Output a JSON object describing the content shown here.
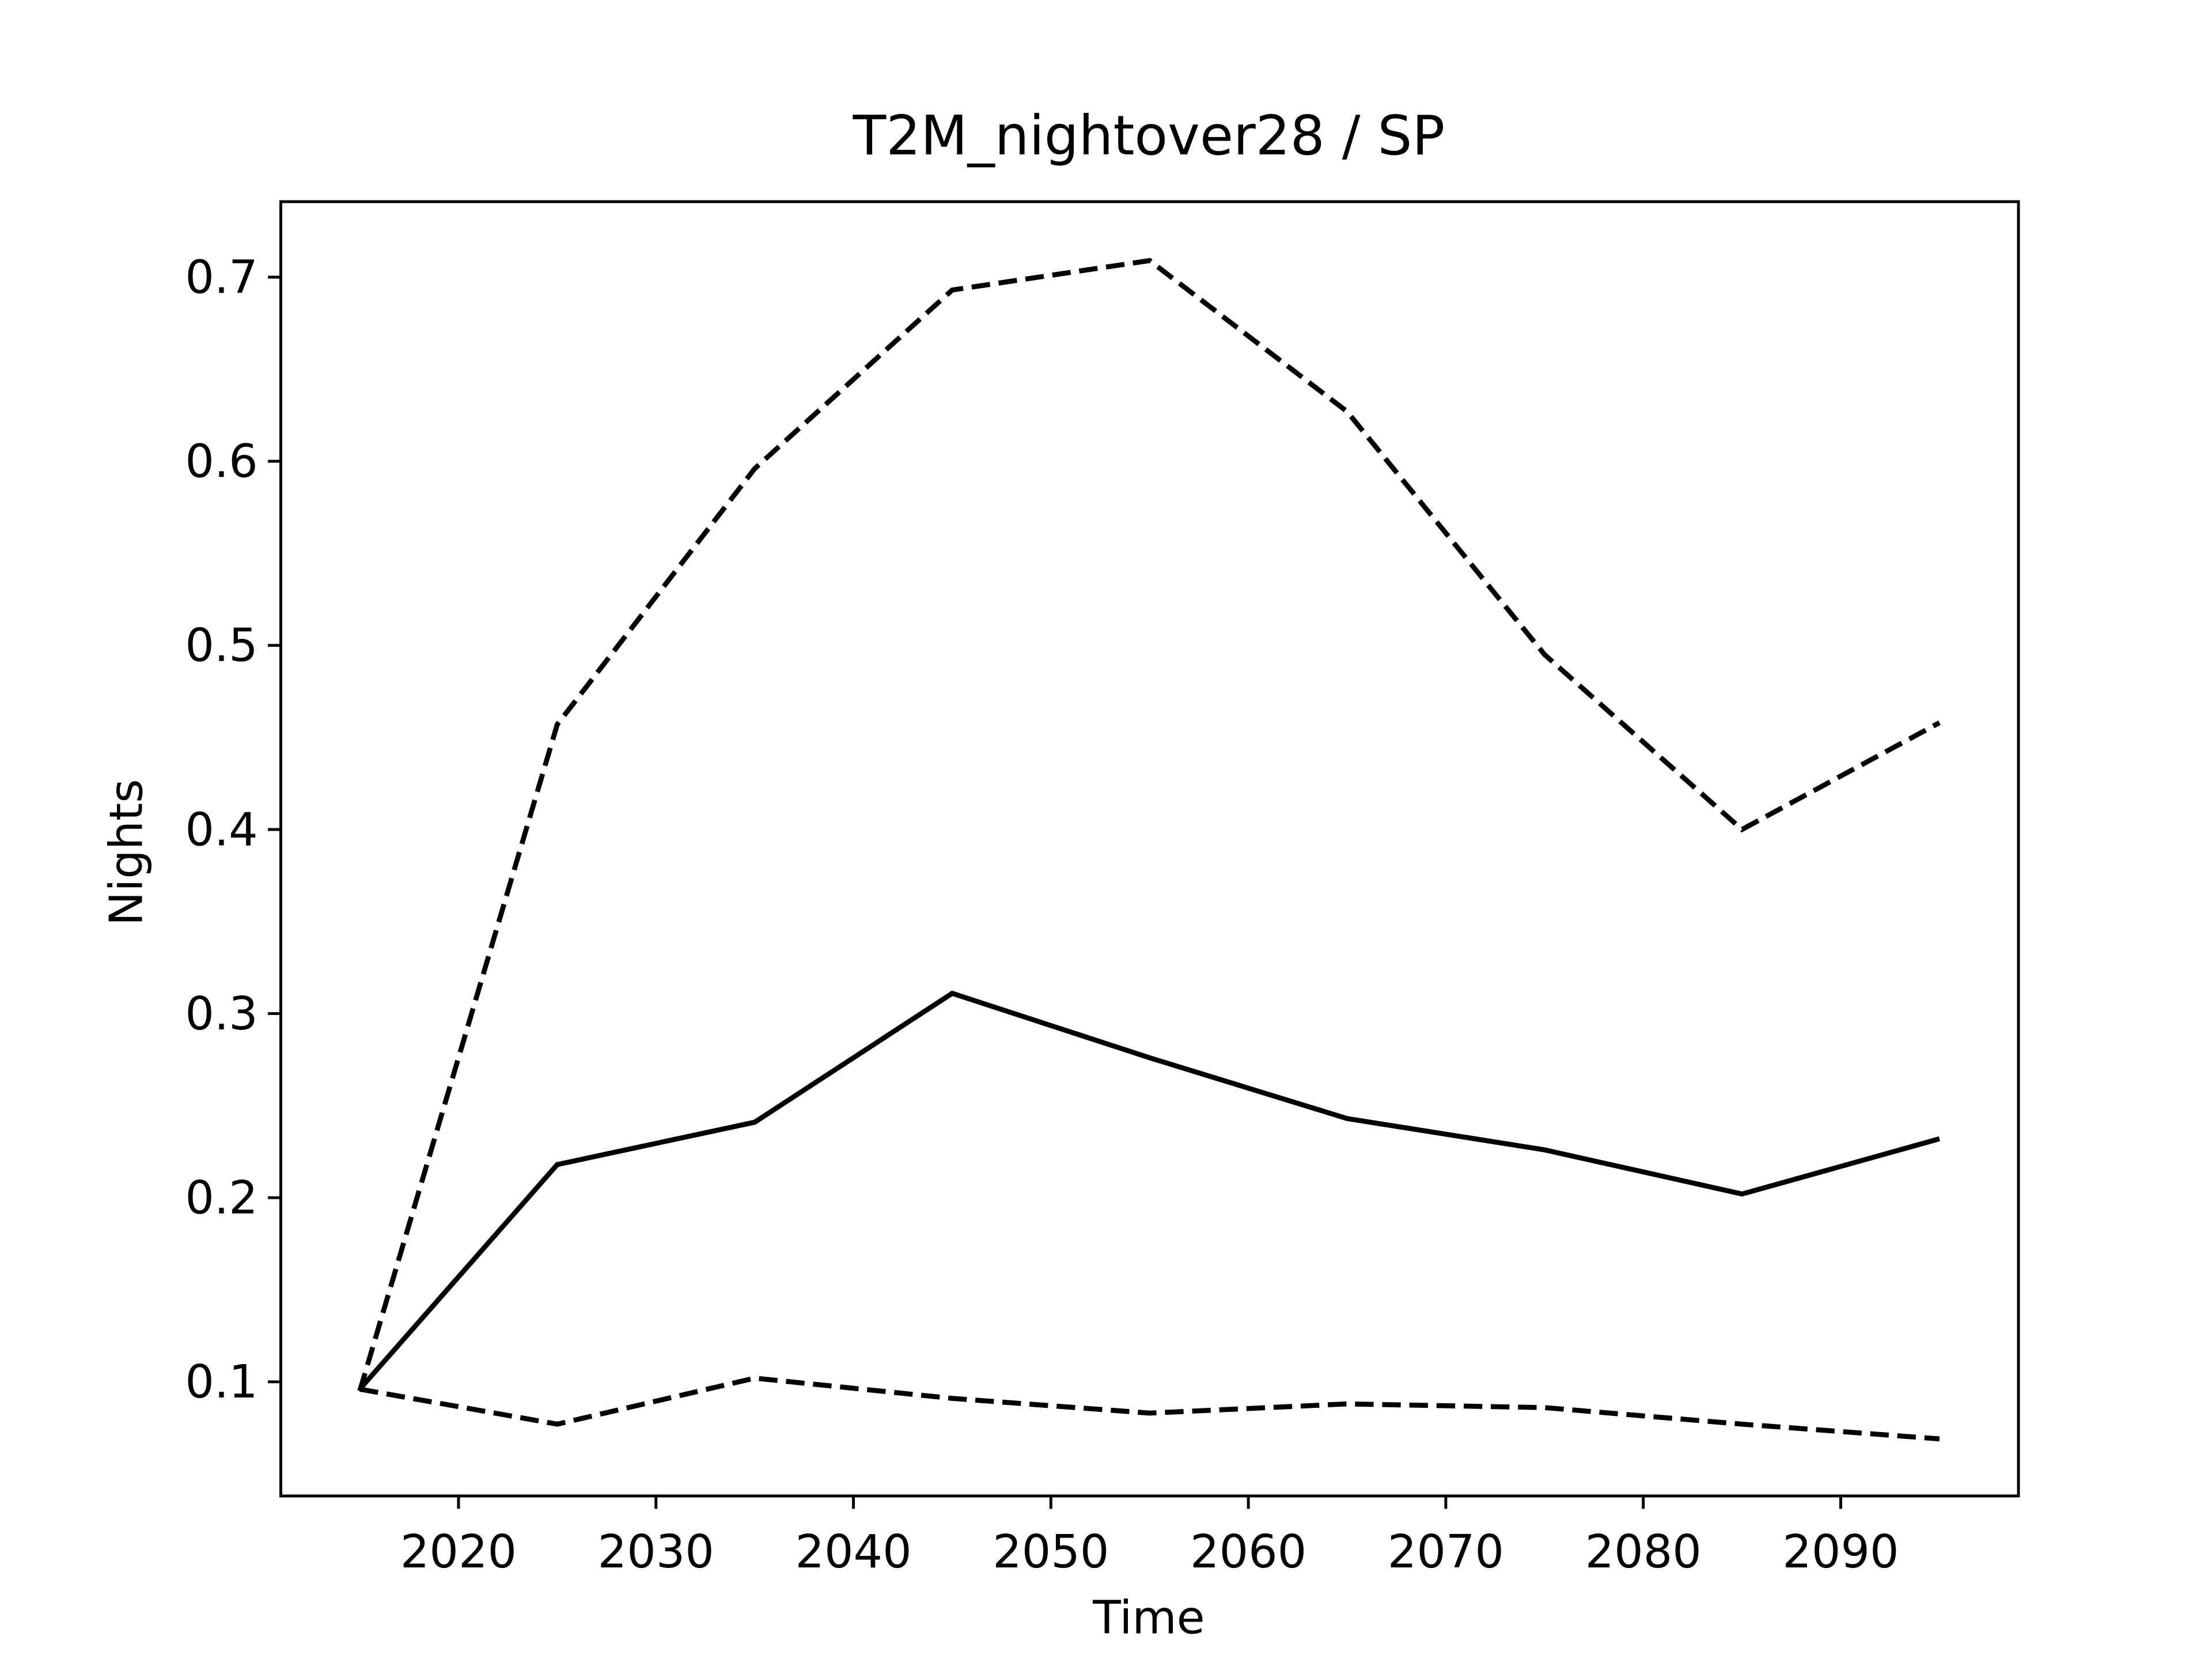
{
  "chart_data": {
    "type": "line",
    "title": "T2M_nightover28 / SP",
    "x_label": "Time",
    "y_label": "Nights",
    "x": [
      2015,
      2025,
      2035,
      2045,
      2055,
      2065,
      2075,
      2085,
      2095
    ],
    "series": [
      {
        "color": "#000000",
        "dashed": true,
        "values": [
          0.095,
          0.457,
          0.596,
          0.693,
          0.709,
          0.627,
          0.495,
          0.4,
          0.458
        ]
      },
      {
        "color": "#000000",
        "dashed": false,
        "values": [
          0.096,
          0.218,
          0.241,
          0.311,
          0.276,
          0.243,
          0.226,
          0.202,
          0.232
        ]
      },
      {
        "color": "#000000",
        "dashed": true,
        "values": [
          0.096,
          0.077,
          0.102,
          0.091,
          0.083,
          0.088,
          0.086,
          0.077,
          0.069
        ]
      }
    ],
    "xlim": [
      2011,
      2099
    ],
    "ylim": [
      0.038,
      0.741
    ],
    "xticks": [
      2020,
      2030,
      2040,
      2050,
      2060,
      2070,
      2080,
      2090
    ],
    "yticks": [
      0.1,
      0.2,
      0.3,
      0.4,
      0.5,
      0.6,
      0.7
    ],
    "grid": false
  }
}
